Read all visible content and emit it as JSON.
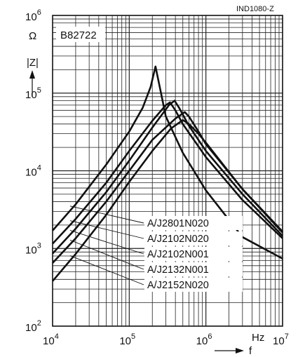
{
  "chart_data": {
    "type": "line",
    "code": "IND1080-Z",
    "part_label": "B82722",
    "x_axis": {
      "label": "f",
      "unit": "Hz",
      "scale": "log",
      "range": [
        10000,
        10000000
      ],
      "tick_labels": [
        "10^4",
        "10^5",
        "10^6",
        "10^7"
      ]
    },
    "y_axis": {
      "label": "|Z|",
      "unit": "Ω",
      "scale": "log",
      "range": [
        100,
        1000000
      ],
      "tick_labels": [
        "10^2",
        "10^3",
        "10^4",
        "10^5",
        "10^6"
      ]
    },
    "grid": true,
    "series": [
      {
        "name": "A/J2801N020",
        "peak": {
          "x": 220000,
          "y": 220000
        },
        "points": [
          [
            10000,
            1700
          ],
          [
            20000,
            3700
          ],
          [
            50000,
            12000
          ],
          [
            100000,
            32000
          ],
          [
            150000,
            65000
          ],
          [
            190000,
            120000
          ],
          [
            220000,
            220000
          ],
          [
            250000,
            120000
          ],
          [
            300000,
            50000
          ],
          [
            500000,
            17000
          ],
          [
            1000000,
            5600
          ],
          [
            3000000,
            1400
          ],
          [
            10000000,
            740
          ]
        ]
      },
      {
        "name": "A/J2102N020",
        "peak": {
          "x": 340000,
          "y": 76000
        },
        "points": [
          [
            10000,
            1150
          ],
          [
            20000,
            2400
          ],
          [
            50000,
            7000
          ],
          [
            100000,
            18000
          ],
          [
            200000,
            44000
          ],
          [
            300000,
            70000
          ],
          [
            340000,
            76000
          ],
          [
            400000,
            60000
          ],
          [
            500000,
            40000
          ],
          [
            1000000,
            15000
          ],
          [
            3000000,
            4200
          ],
          [
            10000000,
            1350
          ]
        ]
      },
      {
        "name": "A/J2102N001",
        "peak": {
          "x": 390000,
          "y": 80000
        },
        "points": [
          [
            10000,
            860
          ],
          [
            20000,
            1800
          ],
          [
            50000,
            5300
          ],
          [
            100000,
            13500
          ],
          [
            200000,
            36000
          ],
          [
            330000,
            70000
          ],
          [
            390000,
            80000
          ],
          [
            450000,
            64000
          ],
          [
            600000,
            38000
          ],
          [
            1000000,
            18000
          ],
          [
            3000000,
            5000
          ],
          [
            10000000,
            1450
          ]
        ]
      },
      {
        "name": "A/J2132N001",
        "peak": {
          "x": 530000,
          "y": 57000
        },
        "points": [
          [
            10000,
            650
          ],
          [
            20000,
            1350
          ],
          [
            50000,
            4000
          ],
          [
            100000,
            10000
          ],
          [
            200000,
            25000
          ],
          [
            400000,
            47000
          ],
          [
            530000,
            57000
          ],
          [
            600000,
            50000
          ],
          [
            800000,
            32000
          ],
          [
            1000000,
            22000
          ],
          [
            3000000,
            5800
          ],
          [
            10000000,
            1600
          ]
        ]
      },
      {
        "name": "A/J2152N020",
        "peak": {
          "x": 500000,
          "y": 45000
        },
        "points": [
          [
            10000,
            380
          ],
          [
            20000,
            850
          ],
          [
            50000,
            2700
          ],
          [
            100000,
            7200
          ],
          [
            200000,
            18000
          ],
          [
            350000,
            35000
          ],
          [
            500000,
            45000
          ],
          [
            600000,
            40000
          ],
          [
            800000,
            30000
          ],
          [
            1000000,
            23000
          ],
          [
            3000000,
            5800
          ],
          [
            10000000,
            1650
          ]
        ]
      }
    ]
  }
}
